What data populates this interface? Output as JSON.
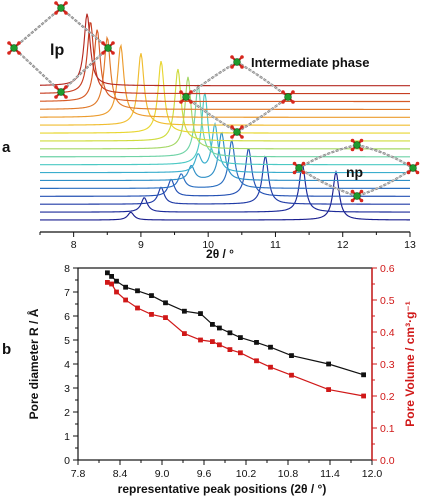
{
  "figure": {
    "panel_a_label": "a",
    "panel_b_label": "b"
  },
  "chart_data": [
    {
      "type": "line",
      "panel": "a",
      "xlabel": "2θ / °",
      "ylabel": "",
      "xlim": [
        7.5,
        13
      ],
      "xticks": [
        "8",
        "9",
        "10",
        "11",
        "12",
        "13"
      ],
      "annotations": [
        "lp",
        "Intermediate phase",
        "np"
      ],
      "stacking": "vertically offset traces, bottom to top",
      "series": [
        {
          "color": "#1a1f8f",
          "peaks": [
            [
              8.85,
              0.16
            ],
            [
              11.9,
              1.0
            ]
          ]
        },
        {
          "color": "#1c2a99",
          "peaks": [
            [
              9.05,
              0.3
            ],
            [
              11.4,
              1.0
            ]
          ]
        },
        {
          "color": "#203ba6",
          "peaks": [
            [
              9.3,
              0.35
            ],
            [
              10.85,
              1.0
            ]
          ]
        },
        {
          "color": "#2451b4",
          "peaks": [
            [
              9.45,
              0.35
            ],
            [
              10.6,
              1.0
            ]
          ]
        },
        {
          "color": "#2a6ec0",
          "peaks": [
            [
              9.6,
              0.3
            ],
            [
              10.35,
              1.0
            ]
          ]
        },
        {
          "color": "#2f8fc6",
          "peaks": [
            [
              9.75,
              0.3
            ],
            [
              10.2,
              1.0
            ]
          ]
        },
        {
          "color": "#3aaecd",
          "peaks": [
            [
              9.85,
              0.35
            ],
            [
              10.1,
              1.0
            ]
          ]
        },
        {
          "color": "#4cc9c4",
          "peaks": [
            [
              9.95,
              1.0
            ]
          ]
        },
        {
          "color": "#6fd3a6",
          "peaks": [
            [
              9.85,
              1.0
            ]
          ]
        },
        {
          "color": "#a5d866",
          "peaks": [
            [
              9.7,
              1.0
            ]
          ]
        },
        {
          "color": "#cfdc3e",
          "peaks": [
            [
              9.55,
              1.0
            ]
          ]
        },
        {
          "color": "#e8d632",
          "peaks": [
            [
              9.3,
              1.0
            ]
          ]
        },
        {
          "color": "#f0bd30",
          "peaks": [
            [
              9.0,
              1.0
            ]
          ]
        },
        {
          "color": "#ec9c2e",
          "peaks": [
            [
              8.7,
              1.0
            ]
          ]
        },
        {
          "color": "#e07a2a",
          "peaks": [
            [
              8.5,
              1.0
            ]
          ]
        },
        {
          "color": "#d65a26",
          "peaks": [
            [
              8.35,
              1.0
            ]
          ]
        },
        {
          "color": "#c73e22",
          "peaks": [
            [
              8.25,
              1.0
            ]
          ]
        },
        {
          "color": "#b52a22",
          "peaks": [
            [
              8.2,
              1.0
            ]
          ]
        }
      ]
    },
    {
      "type": "line",
      "panel": "b",
      "xlabel": "representative peak positions (2θ / °)",
      "ylabel": "Pore diameter R / Å",
      "y2label": "Pore Volume / cm³·g⁻¹",
      "xlim": [
        7.8,
        12.0
      ],
      "ylim": [
        0,
        8
      ],
      "y2lim": [
        0,
        0.6
      ],
      "xticks": [
        "7.8",
        "8.4",
        "9.0",
        "9.6",
        "10.2",
        "10.8",
        "11.4",
        "12.0"
      ],
      "yticks": [
        "0",
        "1",
        "2",
        "3",
        "4",
        "5",
        "6",
        "7",
        "8"
      ],
      "y2ticks": [
        "0.0",
        "0.1",
        "0.2",
        "0.3",
        "0.4",
        "0.5",
        "0.6"
      ],
      "series": [
        {
          "axis": "left",
          "color": "#111111",
          "marker": "square",
          "x": [
            8.22,
            8.28,
            8.35,
            8.48,
            8.65,
            8.85,
            9.05,
            9.32,
            9.55,
            9.72,
            9.82,
            9.97,
            10.12,
            10.35,
            10.55,
            10.85,
            11.38,
            11.88
          ],
          "y": [
            7.8,
            7.65,
            7.45,
            7.2,
            7.05,
            6.85,
            6.55,
            6.2,
            6.1,
            5.65,
            5.5,
            5.3,
            5.1,
            4.9,
            4.7,
            4.35,
            4.0,
            3.55
          ]
        },
        {
          "axis": "right",
          "color": "#d01818",
          "marker": "square",
          "x": [
            8.22,
            8.28,
            8.35,
            8.48,
            8.65,
            8.85,
            9.05,
            9.32,
            9.55,
            9.72,
            9.82,
            9.97,
            10.12,
            10.35,
            10.55,
            10.85,
            11.38,
            11.88
          ],
          "y": [
            0.555,
            0.55,
            0.525,
            0.5,
            0.475,
            0.455,
            0.445,
            0.395,
            0.375,
            0.37,
            0.36,
            0.345,
            0.335,
            0.31,
            0.29,
            0.265,
            0.22,
            0.2
          ]
        }
      ]
    }
  ]
}
